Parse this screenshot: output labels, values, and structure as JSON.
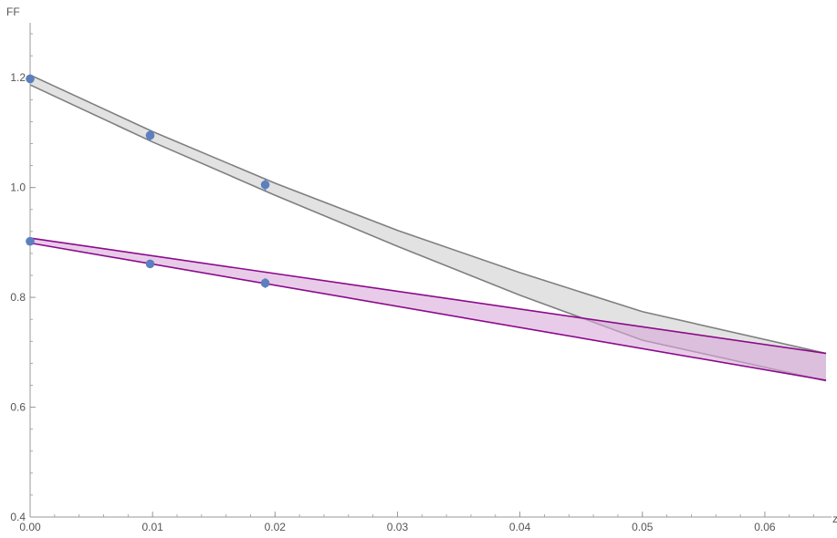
{
  "chart_data": {
    "type": "line",
    "title": "",
    "xlabel": "z",
    "ylabel": "FF",
    "xlim": [
      0,
      0.065
    ],
    "ylim": [
      0.4,
      1.3
    ],
    "x_ticks": [
      0.0,
      0.01,
      0.02,
      0.03,
      0.04,
      0.05,
      0.06
    ],
    "x_tick_labels": [
      "0.00",
      "0.01",
      "0.02",
      "0.03",
      "0.04",
      "0.05",
      "0.06"
    ],
    "x_minor_step": 0.002,
    "y_ticks": [
      0.4,
      0.6,
      0.8,
      1.0,
      1.2
    ],
    "y_tick_labels": [
      "0.4",
      "0.6",
      "0.8",
      "1.0",
      "1.2"
    ],
    "y_minor_step": 0.04,
    "grid": false,
    "legend": "none",
    "bands": [
      {
        "color": "#7f7f7f",
        "fill": "#cfcfcf",
        "upper": {
          "x": [
            0,
            0.01,
            0.02,
            0.03,
            0.04,
            0.05,
            0.065
          ],
          "y": [
            1.205,
            1.102,
            1.008,
            0.922,
            0.845,
            0.774,
            0.698
          ]
        },
        "lower": {
          "x": [
            0,
            0.01,
            0.02,
            0.03,
            0.04,
            0.05,
            0.065
          ],
          "y": [
            1.187,
            1.083,
            0.986,
            0.893,
            0.804,
            0.722,
            0.648
          ]
        }
      },
      {
        "color": "#8b0a8b",
        "fill": "#d8a8d8",
        "upper": {
          "x": [
            0,
            0.065
          ],
          "y": [
            0.908,
            0.698
          ]
        },
        "lower": {
          "x": [
            0,
            0.065
          ],
          "y": [
            0.899,
            0.649
          ]
        }
      }
    ],
    "series": [
      {
        "color": "#5b7fbf",
        "points": [
          {
            "x": 0.0,
            "y": 1.198,
            "err": 0.008
          },
          {
            "x": 0.0098,
            "y": 1.095,
            "err": 0.01
          },
          {
            "x": 0.0192,
            "y": 1.005,
            "err": 0.012
          },
          {
            "x": 0.0,
            "y": 0.902,
            "err": 0.006
          },
          {
            "x": 0.0098,
            "y": 0.861,
            "err": 0.007
          },
          {
            "x": 0.0192,
            "y": 0.826,
            "err": 0.009
          }
        ]
      }
    ]
  }
}
